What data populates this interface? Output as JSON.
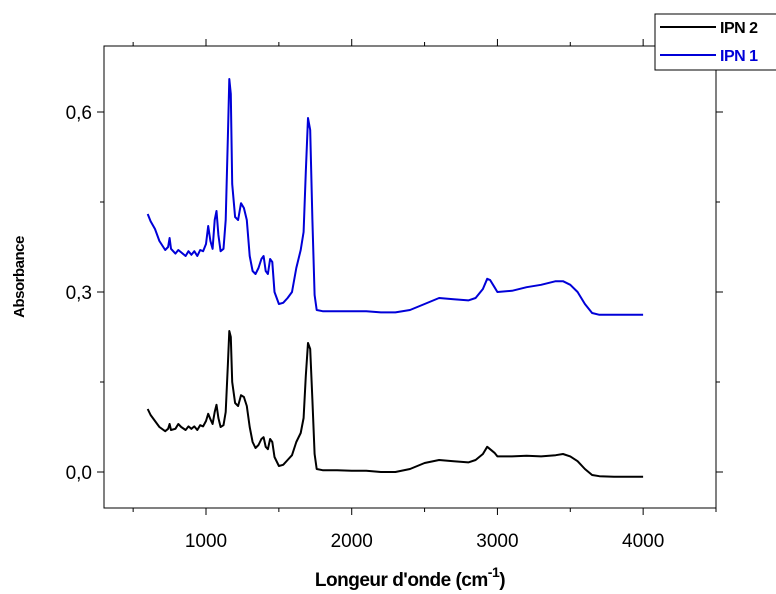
{
  "chart_data": {
    "type": "line",
    "xlabel": "Longeur d'onde (cm",
    "xlabel_superscript": "-1",
    "xlabel_close": ")",
    "ylabel": "Absorbance",
    "xlim": [
      300,
      4500
    ],
    "ylim": [
      -0.06,
      0.71
    ],
    "xticks": [
      {
        "value": 1000,
        "label": "1000"
      },
      {
        "value": 2000,
        "label": "2000"
      },
      {
        "value": 3000,
        "label": "3000"
      },
      {
        "value": 4000,
        "label": "4000"
      }
    ],
    "yticks": [
      {
        "value": 0.0,
        "label": "0,0"
      },
      {
        "value": 0.3,
        "label": "0,3"
      },
      {
        "value": 0.6,
        "label": "0,6"
      }
    ],
    "legend_position": "top-right",
    "series": [
      {
        "name": "IPN 2",
        "color": "#000000",
        "points": [
          [
            600,
            0.105
          ],
          [
            620,
            0.095
          ],
          [
            650,
            0.085
          ],
          [
            680,
            0.075
          ],
          [
            720,
            0.068
          ],
          [
            740,
            0.072
          ],
          [
            750,
            0.08
          ],
          [
            760,
            0.07
          ],
          [
            790,
            0.072
          ],
          [
            810,
            0.08
          ],
          [
            830,
            0.075
          ],
          [
            860,
            0.07
          ],
          [
            880,
            0.076
          ],
          [
            900,
            0.072
          ],
          [
            920,
            0.076
          ],
          [
            940,
            0.07
          ],
          [
            960,
            0.078
          ],
          [
            980,
            0.076
          ],
          [
            1000,
            0.085
          ],
          [
            1015,
            0.097
          ],
          [
            1030,
            0.088
          ],
          [
            1045,
            0.08
          ],
          [
            1060,
            0.1
          ],
          [
            1072,
            0.112
          ],
          [
            1085,
            0.09
          ],
          [
            1100,
            0.075
          ],
          [
            1120,
            0.078
          ],
          [
            1135,
            0.1
          ],
          [
            1150,
            0.18
          ],
          [
            1160,
            0.235
          ],
          [
            1170,
            0.225
          ],
          [
            1180,
            0.15
          ],
          [
            1200,
            0.115
          ],
          [
            1220,
            0.11
          ],
          [
            1240,
            0.128
          ],
          [
            1260,
            0.125
          ],
          [
            1280,
            0.11
          ],
          [
            1300,
            0.075
          ],
          [
            1320,
            0.05
          ],
          [
            1340,
            0.04
          ],
          [
            1360,
            0.045
          ],
          [
            1380,
            0.055
          ],
          [
            1395,
            0.058
          ],
          [
            1410,
            0.042
          ],
          [
            1425,
            0.038
          ],
          [
            1440,
            0.055
          ],
          [
            1455,
            0.05
          ],
          [
            1470,
            0.025
          ],
          [
            1500,
            0.01
          ],
          [
            1530,
            0.012
          ],
          [
            1560,
            0.02
          ],
          [
            1590,
            0.028
          ],
          [
            1620,
            0.05
          ],
          [
            1650,
            0.065
          ],
          [
            1670,
            0.09
          ],
          [
            1685,
            0.16
          ],
          [
            1700,
            0.215
          ],
          [
            1715,
            0.205
          ],
          [
            1730,
            0.12
          ],
          [
            1745,
            0.03
          ],
          [
            1760,
            0.005
          ],
          [
            1800,
            0.003
          ],
          [
            1900,
            0.003
          ],
          [
            2000,
            0.002
          ],
          [
            2100,
            0.002
          ],
          [
            2200,
            0.0
          ],
          [
            2300,
            0.0
          ],
          [
            2400,
            0.005
          ],
          [
            2500,
            0.015
          ],
          [
            2600,
            0.02
          ],
          [
            2700,
            0.018
          ],
          [
            2800,
            0.016
          ],
          [
            2850,
            0.02
          ],
          [
            2900,
            0.03
          ],
          [
            2930,
            0.042
          ],
          [
            2950,
            0.038
          ],
          [
            2980,
            0.032
          ],
          [
            3000,
            0.026
          ],
          [
            3100,
            0.026
          ],
          [
            3200,
            0.027
          ],
          [
            3300,
            0.026
          ],
          [
            3400,
            0.028
          ],
          [
            3450,
            0.03
          ],
          [
            3500,
            0.026
          ],
          [
            3550,
            0.018
          ],
          [
            3600,
            0.005
          ],
          [
            3650,
            -0.005
          ],
          [
            3700,
            -0.007
          ],
          [
            3800,
            -0.008
          ],
          [
            3900,
            -0.008
          ],
          [
            4000,
            -0.008
          ]
        ]
      },
      {
        "name": "IPN 1",
        "color": "#0000d8",
        "points": [
          [
            600,
            0.43
          ],
          [
            620,
            0.418
          ],
          [
            650,
            0.405
          ],
          [
            680,
            0.385
          ],
          [
            720,
            0.37
          ],
          [
            740,
            0.375
          ],
          [
            750,
            0.39
          ],
          [
            760,
            0.372
          ],
          [
            790,
            0.364
          ],
          [
            810,
            0.37
          ],
          [
            830,
            0.366
          ],
          [
            860,
            0.36
          ],
          [
            880,
            0.368
          ],
          [
            900,
            0.362
          ],
          [
            920,
            0.368
          ],
          [
            940,
            0.36
          ],
          [
            960,
            0.37
          ],
          [
            980,
            0.368
          ],
          [
            1000,
            0.38
          ],
          [
            1015,
            0.41
          ],
          [
            1030,
            0.385
          ],
          [
            1045,
            0.372
          ],
          [
            1060,
            0.42
          ],
          [
            1072,
            0.435
          ],
          [
            1085,
            0.395
          ],
          [
            1100,
            0.368
          ],
          [
            1120,
            0.372
          ],
          [
            1135,
            0.42
          ],
          [
            1150,
            0.56
          ],
          [
            1160,
            0.655
          ],
          [
            1170,
            0.63
          ],
          [
            1180,
            0.48
          ],
          [
            1200,
            0.425
          ],
          [
            1220,
            0.42
          ],
          [
            1240,
            0.448
          ],
          [
            1260,
            0.44
          ],
          [
            1280,
            0.42
          ],
          [
            1300,
            0.36
          ],
          [
            1320,
            0.335
          ],
          [
            1340,
            0.33
          ],
          [
            1360,
            0.34
          ],
          [
            1380,
            0.355
          ],
          [
            1395,
            0.36
          ],
          [
            1410,
            0.335
          ],
          [
            1425,
            0.33
          ],
          [
            1440,
            0.355
          ],
          [
            1455,
            0.35
          ],
          [
            1470,
            0.3
          ],
          [
            1500,
            0.28
          ],
          [
            1530,
            0.282
          ],
          [
            1560,
            0.29
          ],
          [
            1590,
            0.3
          ],
          [
            1620,
            0.34
          ],
          [
            1650,
            0.37
          ],
          [
            1670,
            0.4
          ],
          [
            1685,
            0.5
          ],
          [
            1700,
            0.59
          ],
          [
            1715,
            0.57
          ],
          [
            1730,
            0.42
          ],
          [
            1745,
            0.295
          ],
          [
            1760,
            0.27
          ],
          [
            1800,
            0.268
          ],
          [
            1900,
            0.268
          ],
          [
            2000,
            0.268
          ],
          [
            2100,
            0.268
          ],
          [
            2200,
            0.266
          ],
          [
            2300,
            0.266
          ],
          [
            2400,
            0.27
          ],
          [
            2500,
            0.28
          ],
          [
            2600,
            0.29
          ],
          [
            2700,
            0.288
          ],
          [
            2800,
            0.286
          ],
          [
            2850,
            0.29
          ],
          [
            2900,
            0.305
          ],
          [
            2930,
            0.322
          ],
          [
            2950,
            0.32
          ],
          [
            2980,
            0.308
          ],
          [
            3000,
            0.3
          ],
          [
            3100,
            0.302
          ],
          [
            3200,
            0.308
          ],
          [
            3300,
            0.312
          ],
          [
            3400,
            0.318
          ],
          [
            3450,
            0.318
          ],
          [
            3500,
            0.312
          ],
          [
            3550,
            0.3
          ],
          [
            3600,
            0.28
          ],
          [
            3650,
            0.265
          ],
          [
            3700,
            0.262
          ],
          [
            3800,
            0.262
          ],
          [
            3900,
            0.262
          ],
          [
            4000,
            0.262
          ]
        ]
      }
    ]
  }
}
